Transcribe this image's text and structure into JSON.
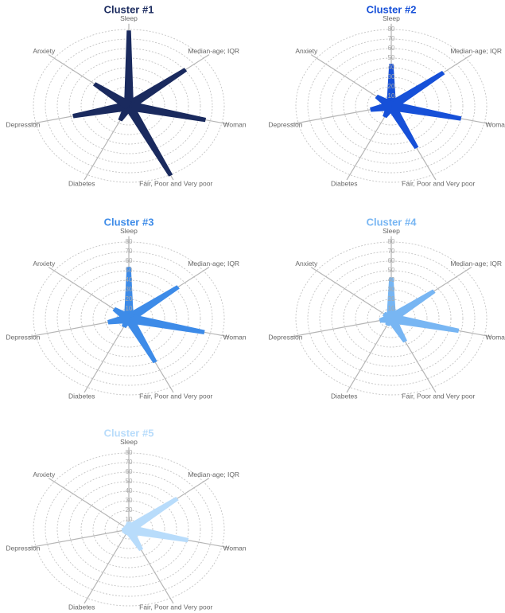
{
  "chart_data": [
    {
      "type": "radar",
      "title": "Cluster #1",
      "color": "#1a2a5e",
      "tick_labels": false,
      "categories": [
        "Sleep",
        "Median-age; IQR",
        "Woman",
        "Fair, Poor and Very poor",
        "Diabetes",
        "Depression",
        "Anxiety"
      ],
      "values": [
        79,
        61,
        66,
        81,
        17,
        48,
        37
      ],
      "rlim": [
        0,
        80
      ],
      "rticks": [
        10,
        20,
        30,
        40,
        50,
        60,
        70,
        80
      ]
    },
    {
      "type": "radar",
      "title": "Cluster #2",
      "color": "#1650d8",
      "tick_labels": true,
      "categories": [
        "Sleep",
        "Median-age; IQR",
        "Woman",
        "Fair, Poor and Very poor",
        "Diabetes",
        "Depression",
        "Anxiety"
      ],
      "values": [
        44,
        56,
        60,
        49,
        13,
        18,
        16
      ],
      "rlim": [
        0,
        80
      ],
      "rticks": [
        10,
        20,
        30,
        40,
        50,
        60,
        70,
        80
      ]
    },
    {
      "type": "radar",
      "title": "Cluster #3",
      "color": "#3d8be8",
      "tick_labels": true,
      "categories": [
        "Sleep",
        "Median-age; IQR",
        "Woman",
        "Fair, Poor and Very poor",
        "Diabetes",
        "Depression",
        "Anxiety"
      ],
      "values": [
        54,
        53,
        65,
        51,
        10,
        18,
        16
      ],
      "rlim": [
        0,
        80
      ],
      "rticks": [
        10,
        20,
        30,
        40,
        50,
        60,
        70,
        80
      ]
    },
    {
      "type": "radar",
      "title": "Cluster #4",
      "color": "#78b6f3",
      "tick_labels": true,
      "categories": [
        "Sleep",
        "Median-age; IQR",
        "Woman",
        "Fair, Poor and Very poor",
        "Diabetes",
        "Depression",
        "Anxiety"
      ],
      "values": [
        43,
        46,
        58,
        27,
        8,
        10,
        8
      ],
      "rlim": [
        0,
        80
      ],
      "rticks": [
        10,
        20,
        30,
        40,
        50,
        60,
        70,
        80
      ]
    },
    {
      "type": "radar",
      "title": "Cluster #5",
      "color": "#b8dcfb",
      "tick_labels": true,
      "categories": [
        "Sleep",
        "Median-age; IQR",
        "Woman",
        "Fair, Poor and Very poor",
        "Diabetes",
        "Depression",
        "Anxiety"
      ],
      "values": [
        8,
        52,
        51,
        24,
        6,
        6,
        5
      ],
      "rlim": [
        0,
        80
      ],
      "rticks": [
        10,
        20,
        30,
        40,
        50,
        60,
        70,
        80
      ]
    }
  ]
}
